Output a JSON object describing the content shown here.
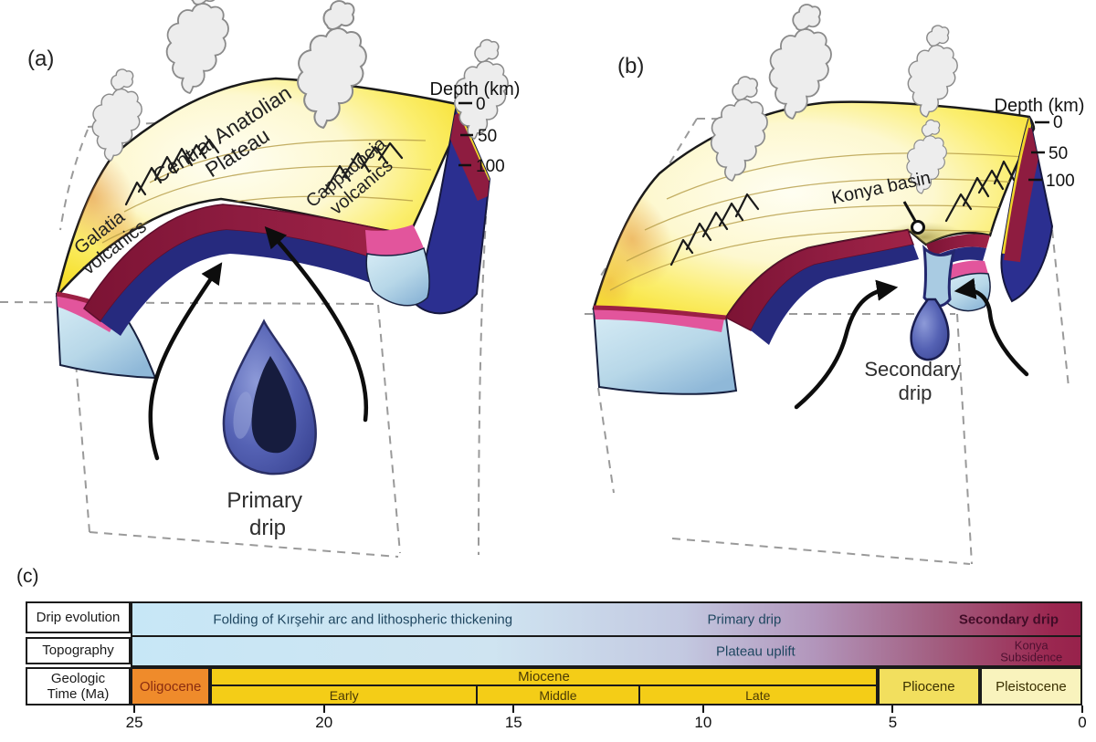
{
  "panels": {
    "a": {
      "label": "(a)",
      "galatia": [
        "Galatia",
        "volcanics"
      ],
      "plateau": [
        "Central Anatolian",
        "Plateau"
      ],
      "cappadocia": [
        "Cappadocia",
        "volcanics"
      ],
      "drip": [
        "Primary",
        "drip"
      ],
      "depth": {
        "title": "Depth (km)",
        "ticks": [
          "0",
          "50",
          "100"
        ]
      }
    },
    "b": {
      "label": "(b)",
      "konya_basin": "Konya basin",
      "drip": [
        "Secondary",
        "drip"
      ],
      "depth": {
        "title": "Depth (km)",
        "ticks": [
          "0",
          "50",
          "100"
        ]
      }
    },
    "c": {
      "label": "(c)",
      "row_headers": {
        "drip_evolution": "Drip evolution",
        "topography": "Topography",
        "geologic_time": [
          "Geologic",
          "Time (Ma)"
        ]
      }
    }
  },
  "chart_data": {
    "type": "table",
    "x_axis": {
      "unit": "Ma",
      "range_ma": [
        25.1,
        0
      ],
      "ticks": [
        25,
        20,
        15,
        10,
        5,
        0
      ],
      "direction": "decreasing"
    },
    "rows": [
      {
        "header": "Drip evolution",
        "segments": [
          {
            "label": "Folding of Kırşehir arc and lithospheric thickening",
            "center_ma": 19.0,
            "style": "blue"
          },
          {
            "label": "Primary drip",
            "center_ma": 8.9,
            "style": "blue"
          },
          {
            "label": "Secondary drip",
            "center_ma": 1.9,
            "style": "dark",
            "bold": true
          }
        ]
      },
      {
        "header": "Topography",
        "segments": [
          {
            "label": "Plateau uplift",
            "center_ma": 8.6,
            "style": "blue"
          },
          {
            "label": "Konya Subsidence",
            "lines": [
              "Konya",
              "Subsidence"
            ],
            "center_ma": 1.3,
            "style": "dark"
          }
        ]
      },
      {
        "header": "Geologic Time (Ma)",
        "epochs": [
          {
            "name": "Oligocene",
            "start_ma": 25.1,
            "end_ma": 23.0,
            "fill": "#ef8b2b",
            "text": "#8a2c10"
          },
          {
            "name": "Miocene",
            "start_ma": 23.0,
            "end_ma": 5.4,
            "fill": "#f4cd17",
            "text": "#4a3a05",
            "sub_epochs": [
              {
                "name": "Early",
                "start_ma": 23.0,
                "end_ma": 16.0
              },
              {
                "name": "Middle",
                "start_ma": 16.0,
                "end_ma": 11.7
              },
              {
                "name": "Late",
                "start_ma": 11.7,
                "end_ma": 5.4
              }
            ]
          },
          {
            "name": "Pliocene",
            "start_ma": 5.4,
            "end_ma": 2.7,
            "fill": "#f2df5e",
            "text": "#3a3000"
          },
          {
            "name": "Pleistocene",
            "start_ma": 2.7,
            "end_ma": 0,
            "fill": "#f9f3bd",
            "text": "#3a3000"
          }
        ]
      }
    ],
    "band_gradient": [
      "#c7e7f6",
      "#cfe4f1",
      "#c3c9e1",
      "#b295bb",
      "#a25d7f",
      "#9b2750"
    ],
    "accent_colors": {
      "crimson_layer": "#8e1c40",
      "navy_layer": "#2b2f90",
      "pink_layer": "#e2559c",
      "light_blue_layer": "#bcdcec",
      "surface_yellow": "#f7e132",
      "drip_blue": "#3c4a9e"
    }
  }
}
